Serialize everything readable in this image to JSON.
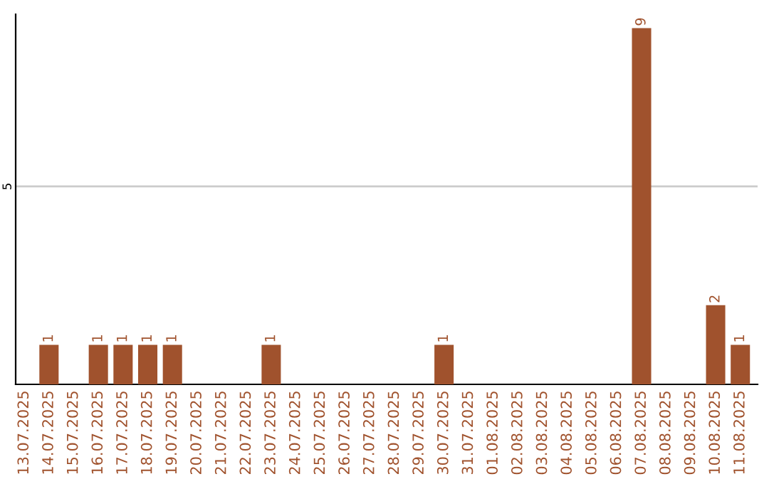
{
  "chart_data": {
    "type": "bar",
    "categories": [
      "13.07.2025",
      "14.07.2025",
      "15.07.2025",
      "16.07.2025",
      "17.07.2025",
      "18.07.2025",
      "19.07.2025",
      "20.07.2025",
      "21.07.2025",
      "22.07.2025",
      "23.07.2025",
      "24.07.2025",
      "25.07.2025",
      "26.07.2025",
      "27.07.2025",
      "28.07.2025",
      "29.07.2025",
      "30.07.2025",
      "31.07.2025",
      "01.08.2025",
      "02.08.2025",
      "03.08.2025",
      "04.08.2025",
      "05.08.2025",
      "06.08.2025",
      "07.08.2025",
      "08.08.2025",
      "09.08.2025",
      "10.08.2025",
      "11.08.2025"
    ],
    "values": [
      0,
      1,
      0,
      1,
      1,
      1,
      1,
      0,
      0,
      0,
      1,
      0,
      0,
      0,
      0,
      0,
      0,
      1,
      0,
      0,
      0,
      0,
      0,
      0,
      0,
      9,
      0,
      0,
      2,
      1
    ],
    "value_labels": [
      null,
      "1",
      null,
      "1",
      "1",
      "1",
      "1",
      null,
      null,
      null,
      "1",
      null,
      null,
      null,
      null,
      null,
      null,
      "1",
      null,
      null,
      null,
      null,
      null,
      null,
      null,
      "9",
      null,
      null,
      "2",
      "1"
    ],
    "color": "#a0522d",
    "ylim": [
      0,
      9.35
    ],
    "yticks": [
      5
    ],
    "grid": "y"
  }
}
